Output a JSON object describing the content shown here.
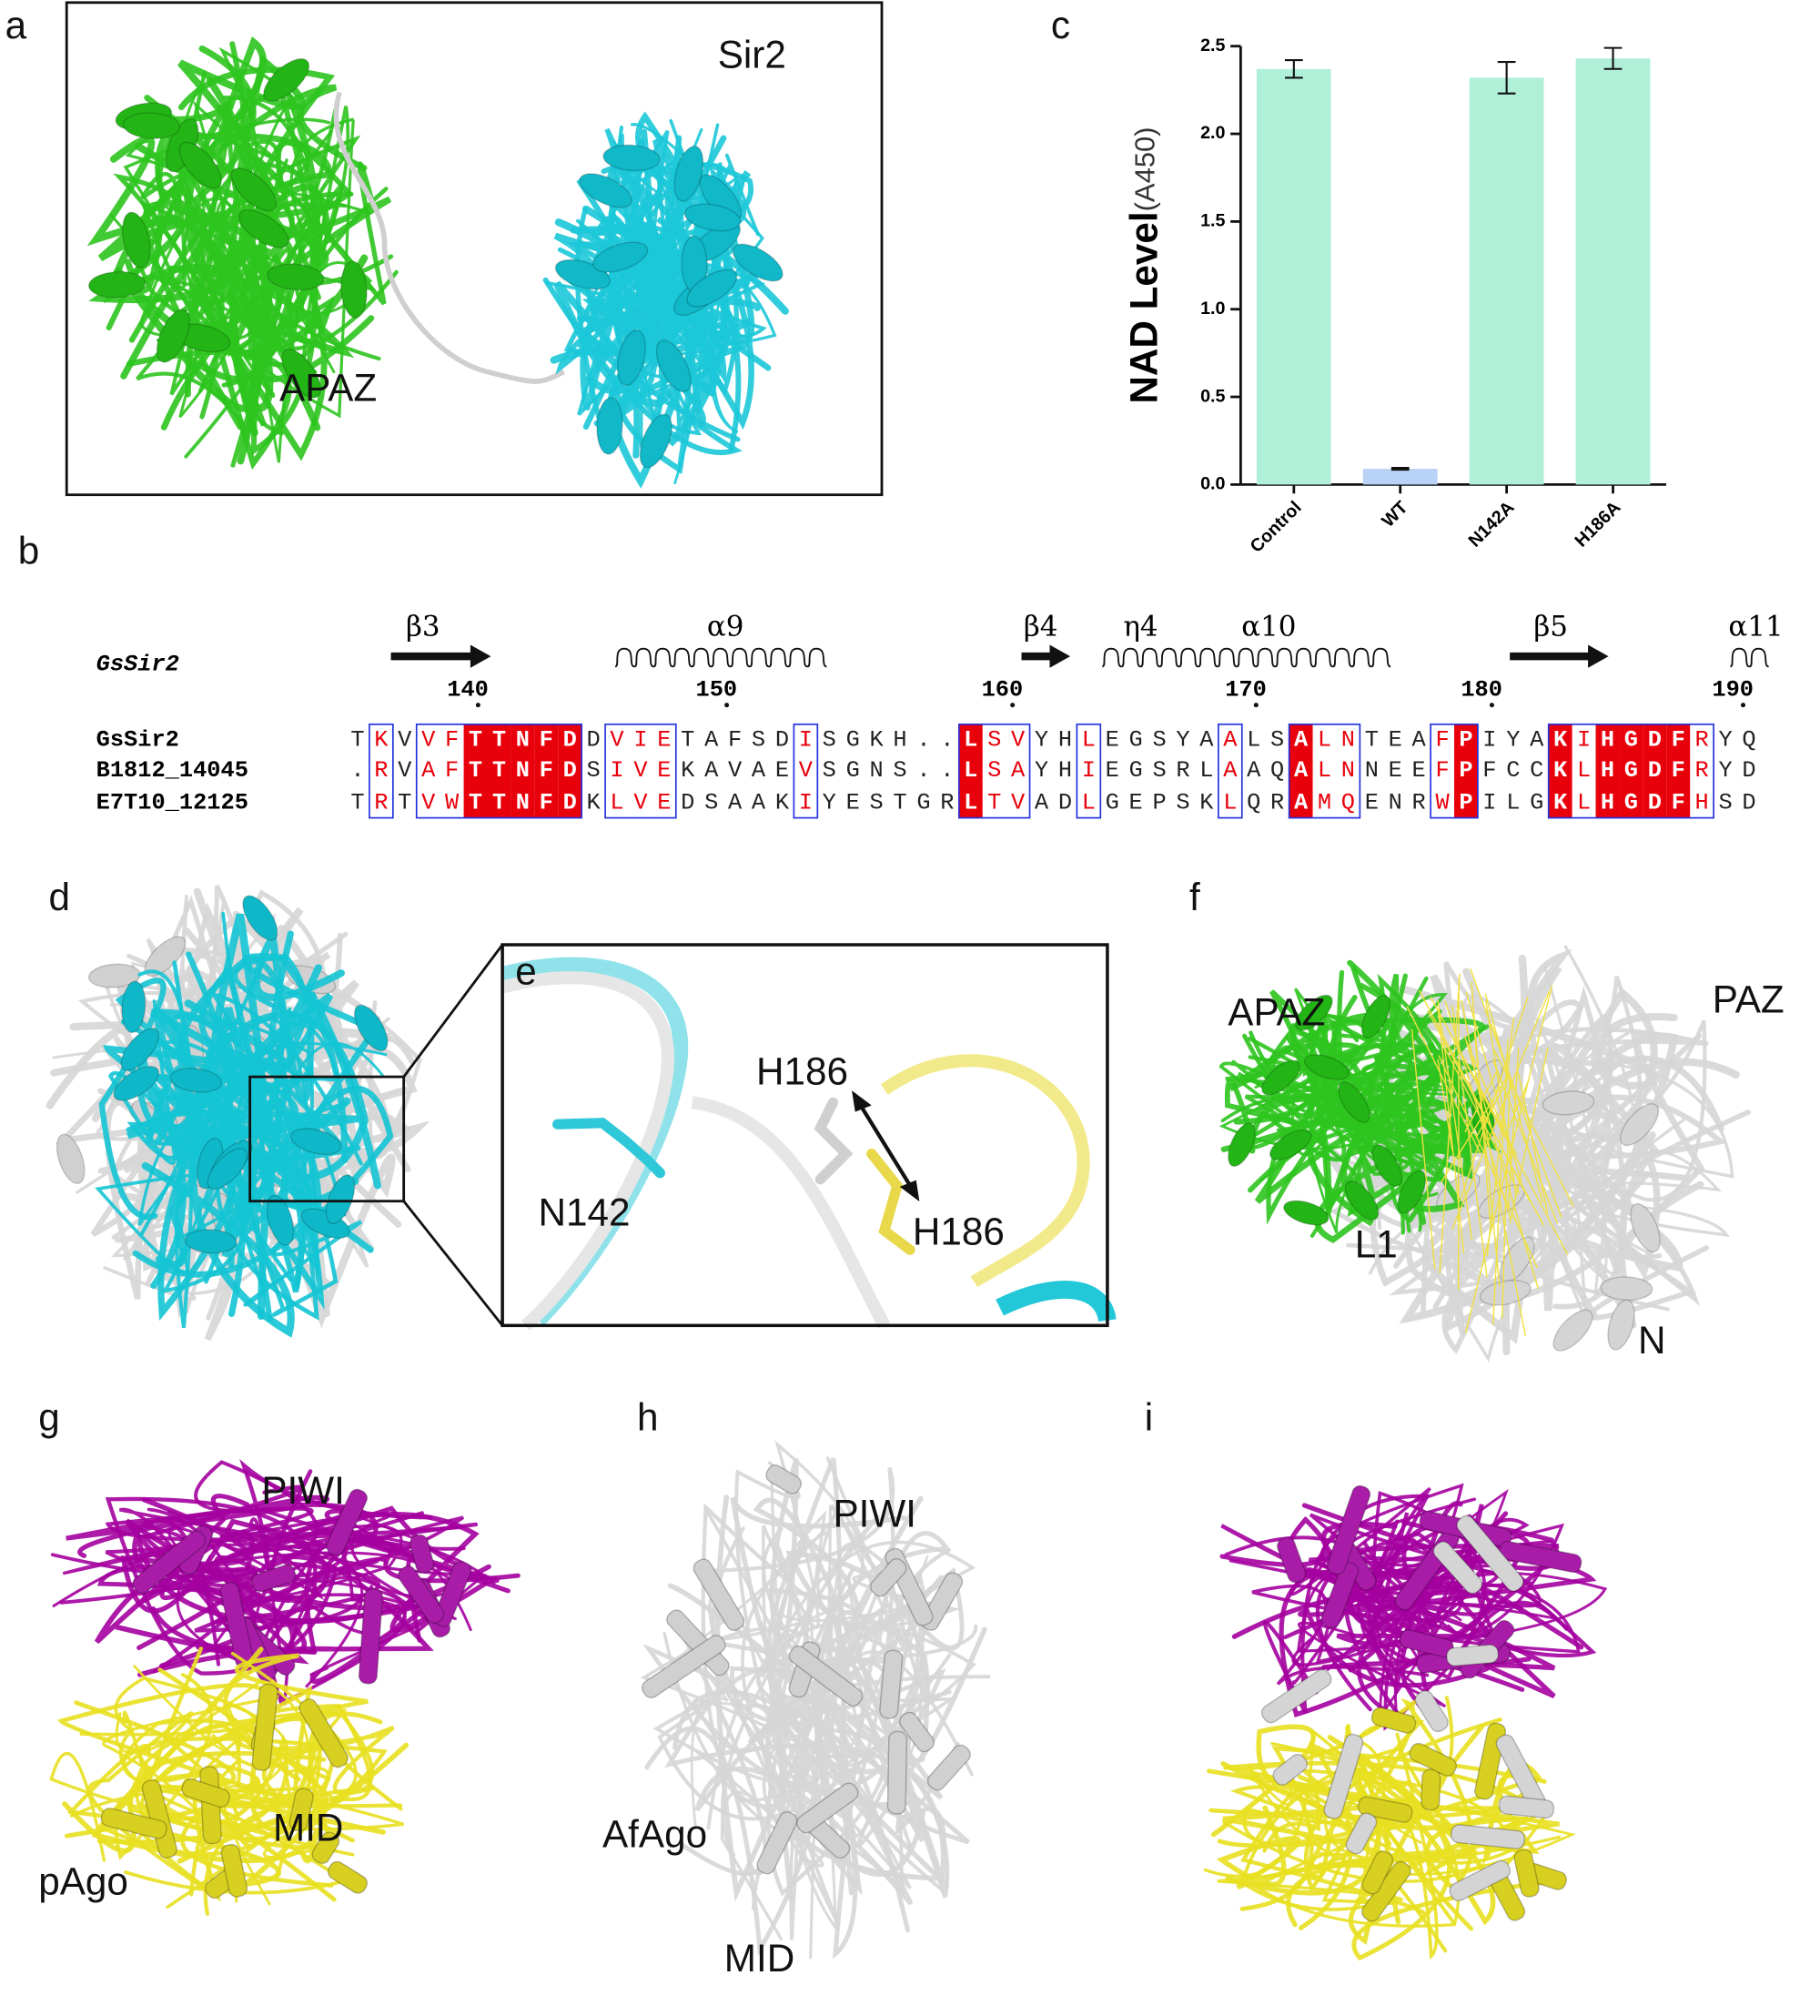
{
  "panels": {
    "a": {
      "label": "a",
      "texts": [
        "Sir2",
        "APAZ"
      ]
    },
    "d": {
      "label": "d"
    },
    "e": {
      "label": "e",
      "texts": [
        "H186",
        "N142",
        "H186"
      ]
    },
    "f": {
      "label": "f",
      "texts": [
        "APAZ",
        "PAZ",
        "L1",
        "N"
      ]
    },
    "g": {
      "label": "g",
      "texts": [
        "PIWI",
        "MID",
        "pAgo"
      ]
    },
    "h": {
      "label": "h",
      "texts": [
        "PIWI",
        "AfAgo",
        "MID"
      ]
    },
    "i": {
      "label": "i"
    }
  },
  "alignment": {
    "label": "b",
    "query_name": "GsSir2",
    "secondary_structure": [
      "β3",
      "α9",
      "β4",
      "η4",
      "α10",
      "β5",
      "α11"
    ],
    "ruler": [
      140,
      150,
      160,
      170,
      180,
      190
    ],
    "rows": [
      {
        "name": "GsSir2",
        "residues": [
          "T",
          "K",
          "V",
          "V",
          "F",
          "T",
          "T",
          "N",
          "F",
          "D",
          "D",
          "V",
          "I",
          "E",
          "T",
          "A",
          "F",
          "S",
          "D",
          "I",
          "S",
          "G",
          "K",
          "H",
          ".",
          ".",
          "L",
          "S",
          "V",
          "Y",
          "H",
          "L",
          "E",
          "G",
          "S",
          "Y",
          "A",
          "A",
          "L",
          "S",
          "A",
          "L",
          "N",
          "T",
          "E",
          "A",
          "F",
          "P",
          "I",
          "Y",
          "A",
          "K",
          "I",
          "H",
          "G",
          "D",
          "F",
          "R",
          "Y",
          "Q"
        ]
      },
      {
        "name": "B1812_14045",
        "residues": [
          ".",
          "R",
          "V",
          "A",
          "F",
          "T",
          "T",
          "N",
          "F",
          "D",
          "S",
          "I",
          "V",
          "E",
          "K",
          "A",
          "V",
          "A",
          "E",
          "V",
          "S",
          "G",
          "N",
          "S",
          ".",
          ".",
          "L",
          "S",
          "A",
          "Y",
          "H",
          "I",
          "E",
          "G",
          "S",
          "R",
          "L",
          "A",
          "A",
          "Q",
          "A",
          "L",
          "N",
          "N",
          "E",
          "E",
          "F",
          "P",
          "F",
          "C",
          "C",
          "K",
          "L",
          "H",
          "G",
          "D",
          "F",
          "R",
          "Y",
          "D"
        ]
      },
      {
        "name": "E7T10_12125",
        "residues": [
          "T",
          "R",
          "T",
          "V",
          "W",
          "T",
          "T",
          "N",
          "F",
          "D",
          "K",
          "L",
          "V",
          "E",
          "D",
          "S",
          "A",
          "A",
          "K",
          "I",
          "Y",
          "E",
          "S",
          "T",
          "G",
          "R",
          "L",
          "T",
          "V",
          "A",
          "D",
          "L",
          "G",
          "E",
          "P",
          "S",
          "K",
          "L",
          "Q",
          "R",
          "A",
          "M",
          "Q",
          "E",
          "N",
          "R",
          "W",
          "P",
          "I",
          "L",
          "G",
          "K",
          "L",
          "H",
          "G",
          "D",
          "F",
          "H",
          "S",
          "D"
        ]
      }
    ]
  },
  "chart_data": {
    "type": "bar",
    "label": "c",
    "y_label": "NAD Level",
    "y_label_unit": "(A450)",
    "categories": [
      "Control",
      "WT",
      "N142A",
      "H186A"
    ],
    "values": [
      2.37,
      0.09,
      2.32,
      2.43
    ],
    "errors": [
      0.05,
      0.005,
      0.09,
      0.06
    ],
    "colors": [
      "#b0f0d8",
      "#b9d3f7",
      "#b0f0d8",
      "#b0f0d8"
    ],
    "ylim": [
      0,
      2.5
    ],
    "yticks": [
      {
        "value": 0,
        "label": "0.0"
      },
      {
        "value": 0.5,
        "label": "0.5"
      },
      {
        "value": 1,
        "label": "1.0"
      },
      {
        "value": 1.5,
        "label": "1.5"
      },
      {
        "value": 2,
        "label": "2.0"
      },
      {
        "value": 2.5,
        "label": "2.5"
      }
    ]
  }
}
